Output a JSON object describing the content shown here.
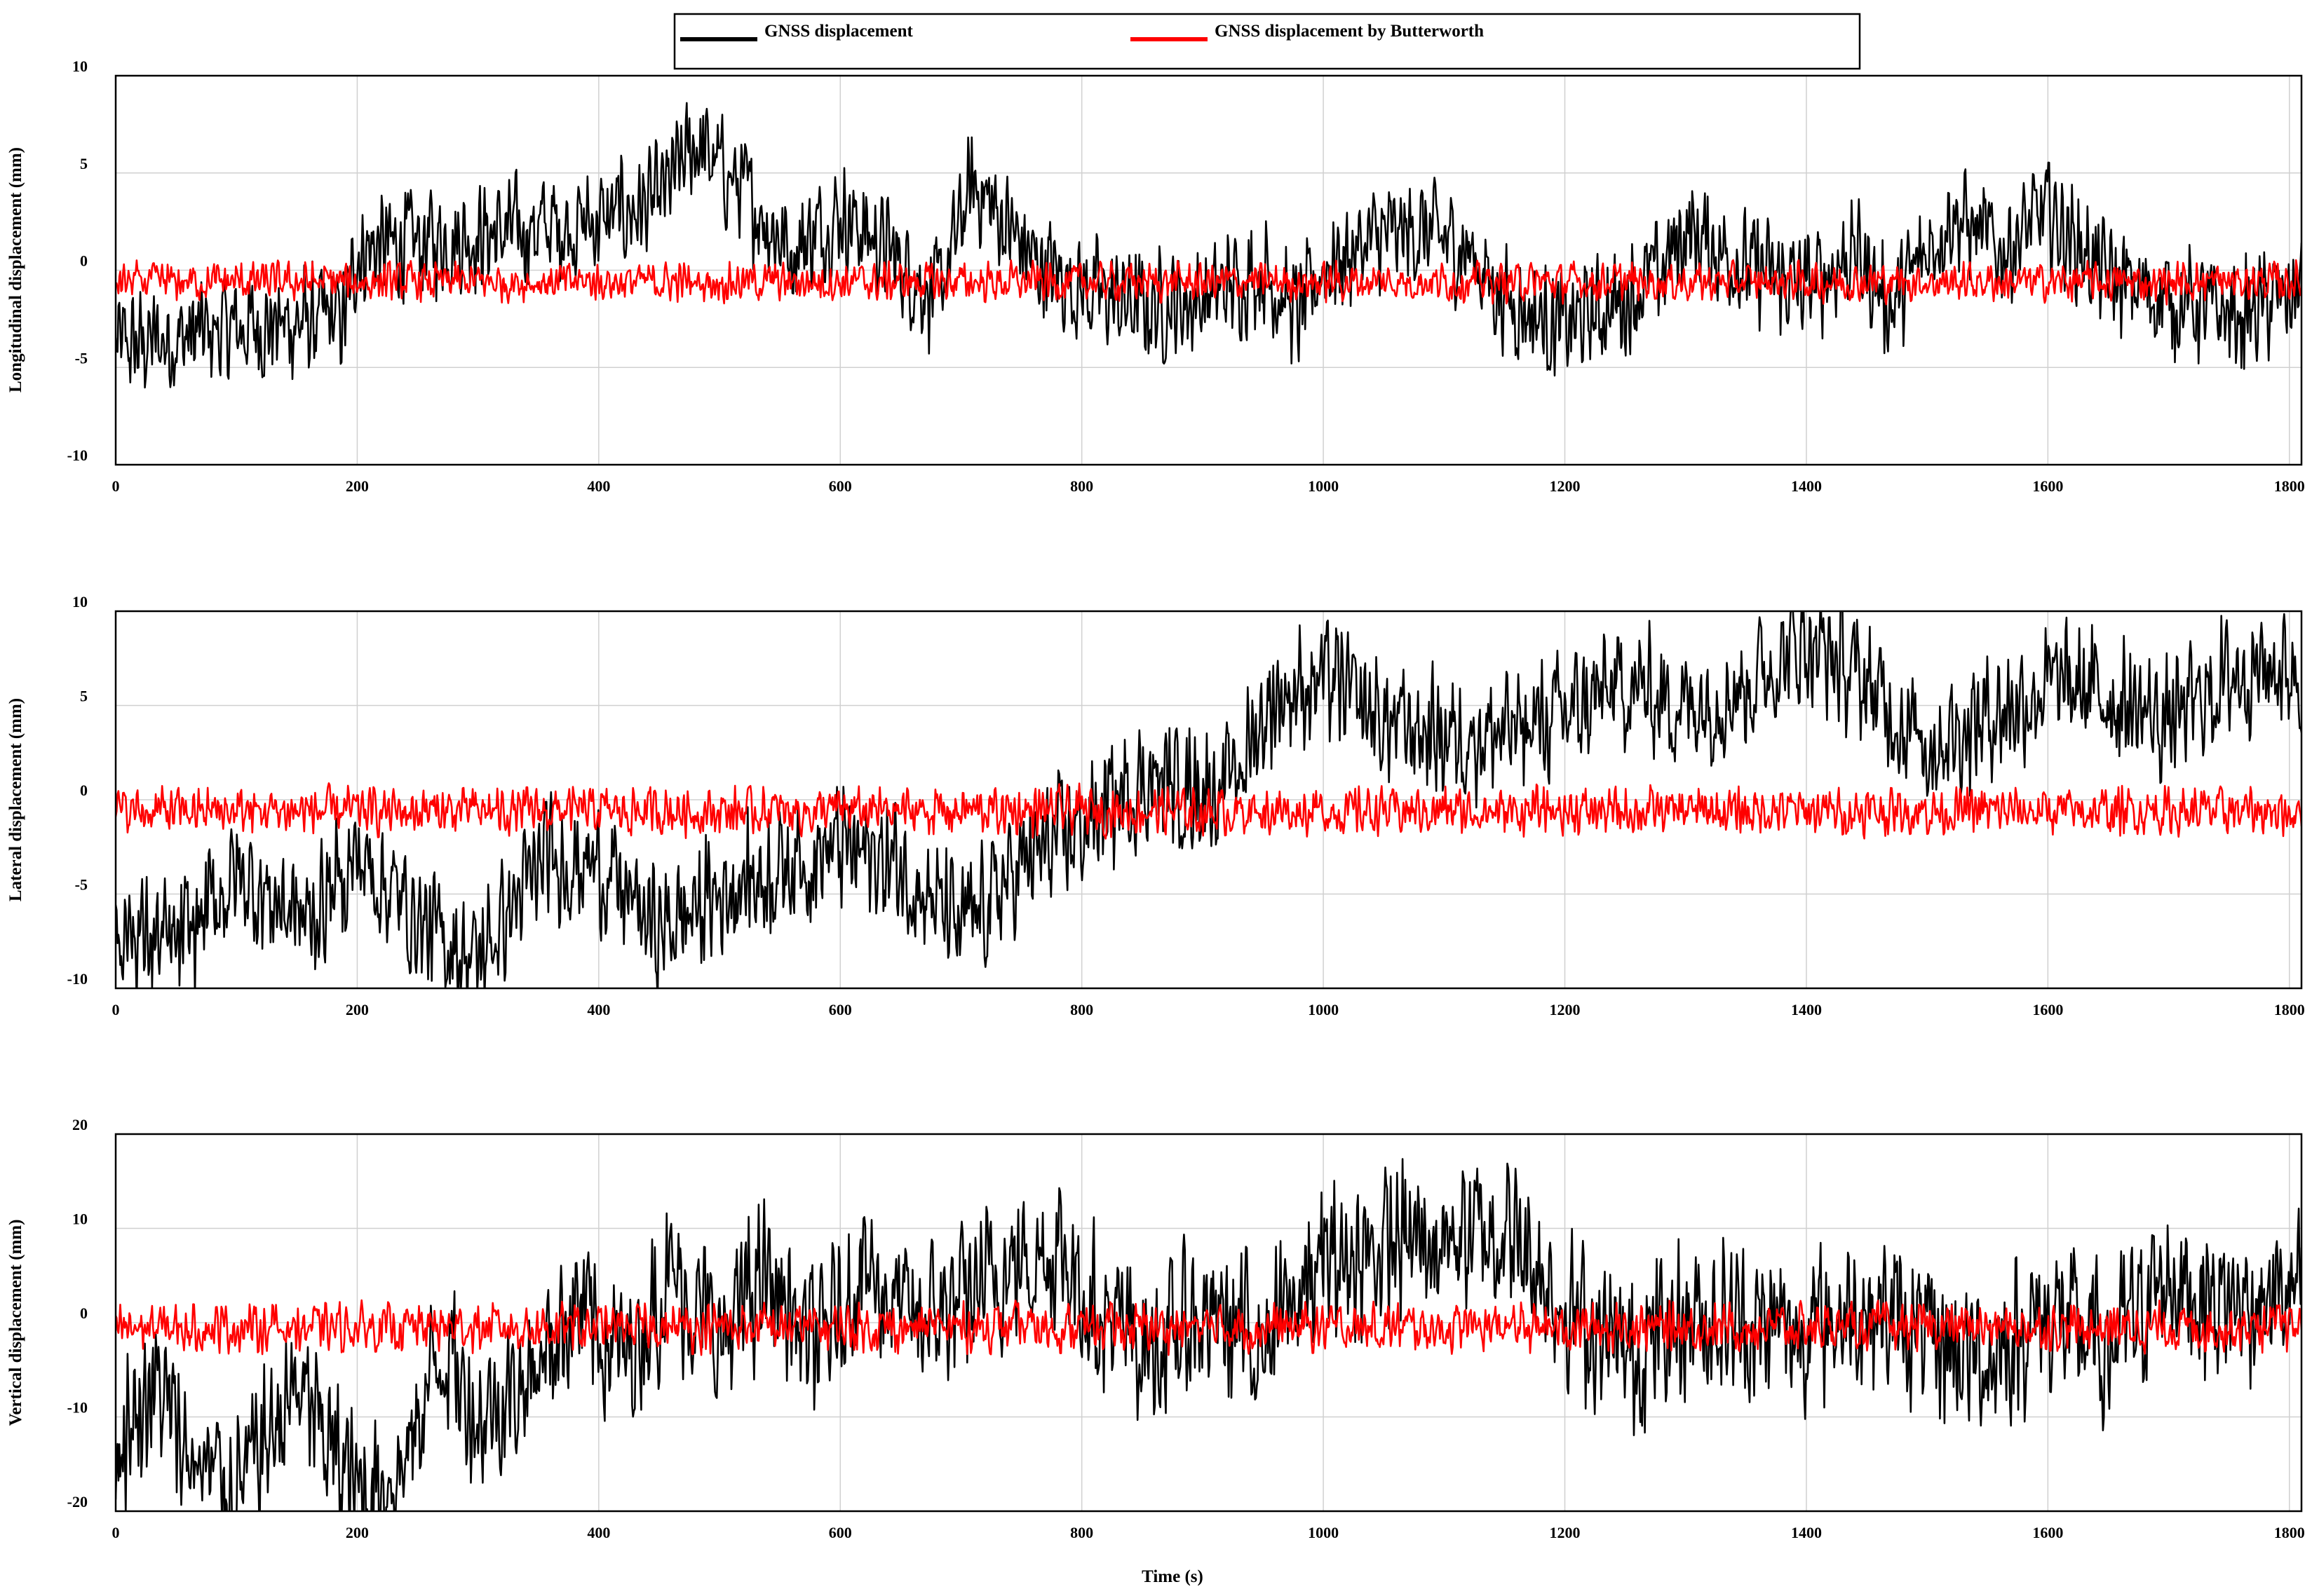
{
  "legend": {
    "items": [
      {
        "label": "GNSS displacement",
        "color": "#000000"
      },
      {
        "label": "GNSS displacement by Butterworth",
        "color": "#ff0000"
      }
    ],
    "placement": "top-center"
  },
  "xlabel": "Time (s)",
  "chart_data": [
    {
      "type": "line",
      "ylabel": "Longitudinal displacement (mm)",
      "xlim": [
        0,
        1810
      ],
      "ylim": [
        -10,
        10
      ],
      "xticks": [
        0,
        200,
        400,
        600,
        800,
        1000,
        1200,
        1400,
        1600,
        1800
      ],
      "yticks": [
        -10,
        -5,
        0,
        5,
        10
      ],
      "grid": true,
      "series": [
        {
          "name": "GNSS displacement",
          "color": "#000000",
          "noise": 3.4,
          "x": [
            0,
            100,
            190,
            200,
            300,
            400,
            450,
            480,
            520,
            560,
            600,
            640,
            680,
            710,
            760,
            800,
            850,
            900,
            950,
            980,
            1000,
            1040,
            1080,
            1120,
            1150,
            1200,
            1250,
            1280,
            1300,
            1350,
            1400,
            1440,
            1470,
            1520,
            1560,
            1600,
            1650,
            1700,
            1760,
            1810
          ],
          "y": [
            -4,
            -3,
            -2.5,
            1,
            1.8,
            2.5,
            3.5,
            6.5,
            4,
            1,
            3,
            1,
            -1.5,
            4.5,
            0.5,
            -1,
            -2,
            -1.5,
            0,
            -2.5,
            0.2,
            1.5,
            2,
            1,
            -1.5,
            -3,
            -1.5,
            0,
            2,
            0.2,
            -1,
            1,
            -2,
            3,
            1,
            3,
            -0.5,
            -1.5,
            -2.5,
            -1
          ]
        },
        {
          "name": "GNSS displacement by Butterworth",
          "color": "#ff0000",
          "noise": 1.2,
          "x": [
            0,
            900,
            1810
          ],
          "y": [
            -0.6,
            -0.6,
            -0.6
          ]
        }
      ]
    },
    {
      "type": "line",
      "ylabel": "Lateral displacement (mm)",
      "xlim": [
        0,
        1810
      ],
      "ylim": [
        -10,
        10
      ],
      "xticks": [
        0,
        200,
        400,
        600,
        800,
        1000,
        1200,
        1400,
        1600,
        1800
      ],
      "yticks": [
        -10,
        -5,
        0,
        5,
        10
      ],
      "grid": true,
      "series": [
        {
          "name": "GNSS displacement",
          "color": "#000000",
          "noise": 4.0,
          "x": [
            0,
            50,
            100,
            160,
            200,
            260,
            300,
            330,
            360,
            400,
            450,
            500,
            550,
            600,
            650,
            700,
            750,
            800,
            850,
            920,
            960,
            1000,
            1050,
            1100,
            1150,
            1200,
            1250,
            1300,
            1350,
            1400,
            1450,
            1500,
            1550,
            1600,
            1650,
            1700,
            1760,
            1810
          ],
          "y": [
            -6.5,
            -8,
            -4,
            -6.5,
            -3,
            -7,
            -8.5,
            -5.5,
            -3,
            -3.5,
            -7,
            -5,
            -3.5,
            -2.5,
            -3.5,
            -7,
            -3.5,
            -1.5,
            1,
            0.5,
            5.5,
            6.5,
            4,
            3.5,
            3.5,
            4.5,
            6,
            5,
            6,
            8.5,
            6,
            3,
            4.5,
            6,
            5.5,
            4,
            7,
            7
          ]
        },
        {
          "name": "GNSS displacement by Butterworth",
          "color": "#ff0000",
          "noise": 1.5,
          "x": [
            0,
            900,
            1810
          ],
          "y": [
            -0.6,
            -0.6,
            -0.6
          ]
        }
      ]
    },
    {
      "type": "line",
      "ylabel": "Vertical displacement (mm)",
      "xlim": [
        0,
        1810
      ],
      "ylim": [
        -20,
        20
      ],
      "xticks": [
        0,
        200,
        400,
        600,
        800,
        1000,
        1200,
        1400,
        1600,
        1800
      ],
      "yticks": [
        -20,
        -10,
        0,
        10,
        20
      ],
      "grid": true,
      "series": [
        {
          "name": "GNSS displacement",
          "color": "#000000",
          "noise": 10.0,
          "x": [
            0,
            30,
            60,
            100,
            150,
            200,
            240,
            270,
            300,
            340,
            380,
            420,
            460,
            500,
            540,
            580,
            620,
            660,
            700,
            740,
            780,
            820,
            860,
            900,
            950,
            1000,
            1050,
            1100,
            1150,
            1200,
            1250,
            1300,
            1350,
            1400,
            1450,
            1500,
            1550,
            1600,
            1650,
            1700,
            1750,
            1810
          ],
          "y": [
            -14,
            -6,
            -14,
            -18,
            -7,
            -18,
            -15,
            -2,
            -10,
            -6,
            2,
            -4,
            5,
            -2,
            5,
            -3,
            6,
            0,
            2,
            6,
            8,
            0,
            -3,
            1,
            -2,
            6,
            8,
            9,
            10,
            2,
            -4,
            1,
            0,
            -1,
            2,
            -2,
            -4,
            1,
            -3,
            5,
            2,
            3
          ]
        },
        {
          "name": "GNSS displacement by Butterworth",
          "color": "#ff0000",
          "noise": 3.0,
          "x": [
            0,
            900,
            1810
          ],
          "y": [
            -0.5,
            -0.5,
            -0.5
          ]
        }
      ]
    }
  ]
}
